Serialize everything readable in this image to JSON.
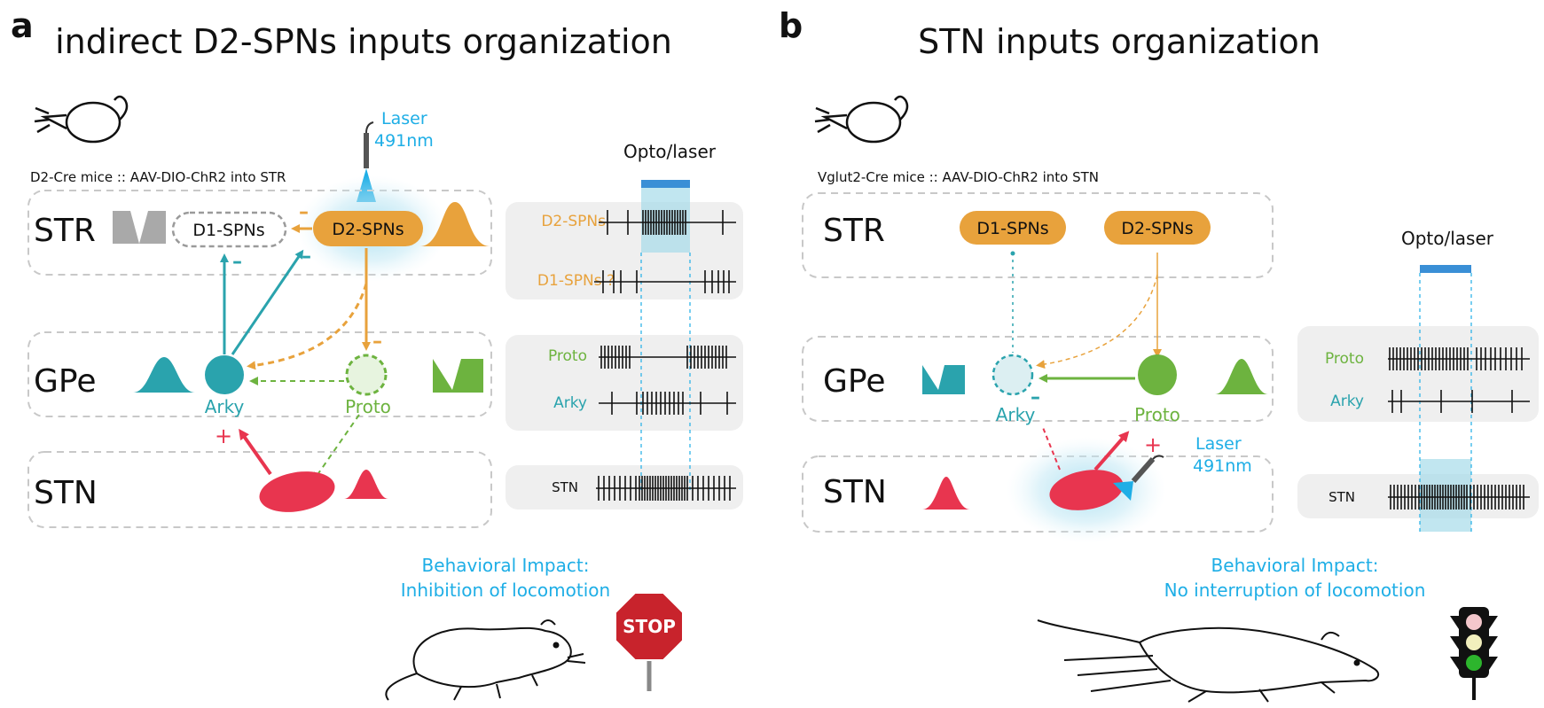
{
  "colors": {
    "d2": "#e8a23c",
    "arky": "#2aa3ad",
    "proto": "#6db33f",
    "stn": "#e8354f",
    "laser": "#1eaee6",
    "box": "#c8c8c8",
    "panel": "#efefef"
  },
  "panel_a": {
    "label": "a",
    "title": "indirect D2-SPNs inputs organization",
    "mice_caption": "D2-Cre mice :: AAV-DIO-ChR2 into STR",
    "laser_label_1": "Laser",
    "laser_label_2": "491nm",
    "opto_label": "Opto/laser",
    "regions": {
      "str": "STR",
      "gpe": "GPe",
      "stn": "STN"
    },
    "neurons": {
      "d1": "D1-SPNs",
      "d2": "D2-SPNs",
      "arky": "Arky",
      "proto": "Proto",
      "question": "?",
      "plus": "+",
      "minus": "–"
    },
    "traces": [
      {
        "label": "D2-SPNs",
        "color": "#e8a23c"
      },
      {
        "label": "D1-SPNs ?",
        "color": "#e8a23c"
      },
      {
        "label": "Proto",
        "color": "#6db33f"
      },
      {
        "label": "Arky",
        "color": "#2aa3ad"
      },
      {
        "label": "STN",
        "color": "#111111"
      }
    ],
    "behavior_1": "Behavioral Impact:",
    "behavior_2": "Inhibition of locomotion",
    "stop_sign": "STOP"
  },
  "panel_b": {
    "label": "b",
    "title": "STN inputs organization",
    "mice_caption": "Vglut2-Cre mice :: AAV-DIO-ChR2 into STN",
    "laser_label_1": "Laser",
    "laser_label_2": "491nm",
    "opto_label": "Opto/laser",
    "regions": {
      "str": "STR",
      "gpe": "GPe",
      "stn": "STN"
    },
    "neurons": {
      "d1": "D1-SPNs",
      "d2": "D2-SPNs",
      "arky": "Arky",
      "proto": "Proto",
      "plus": "+",
      "minus": "–"
    },
    "traces": [
      {
        "label": "Proto",
        "color": "#6db33f"
      },
      {
        "label": "Arky",
        "color": "#2aa3ad"
      },
      {
        "label": "STN",
        "color": "#111111"
      }
    ],
    "behavior_1": "Behavioral Impact:",
    "behavior_2": "No interruption of locomotion"
  }
}
